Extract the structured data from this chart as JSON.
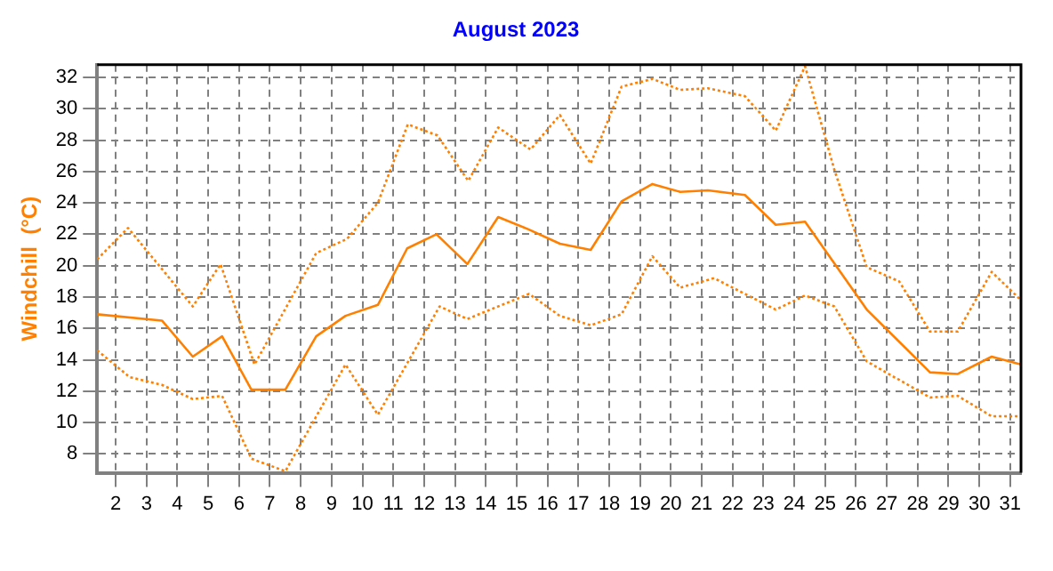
{
  "chart_data": {
    "type": "line",
    "title": "August 2023",
    "ylabel": "Windchill  (°C)",
    "xlim": [
      1.4,
      31.35
    ],
    "xticks": [
      2,
      3,
      4,
      5,
      6,
      7,
      8,
      9,
      10,
      11,
      12,
      13,
      14,
      15,
      16,
      17,
      18,
      19,
      20,
      21,
      22,
      23,
      24,
      25,
      26,
      27,
      28,
      29,
      30,
      31
    ],
    "ylim": [
      6.8,
      32.8
    ],
    "yticks": [
      8,
      10,
      12,
      14,
      16,
      18,
      20,
      22,
      24,
      26,
      28,
      30,
      32
    ],
    "grid": true,
    "legend": false,
    "marker": "none",
    "series": [
      {
        "color": "#ff8000",
        "line_style": "dotted",
        "x": [
          1.4,
          2.4,
          4.5,
          5.4,
          6.5,
          8.5,
          9.5,
          10.5,
          11.47,
          12.43,
          13.43,
          14.4,
          15.45,
          16.4,
          17.4,
          18.4,
          19.4,
          20.3,
          21.2,
          22.4,
          23.4,
          24.35,
          25.3,
          26.35,
          27.4,
          28.4,
          29.3,
          30.4,
          31.35
        ],
        "values": [
          20.4,
          22.4,
          17.4,
          20.1,
          13.7,
          20.8,
          21.7,
          24.0,
          29.0,
          28.3,
          25.4,
          28.8,
          27.4,
          29.6,
          26.5,
          31.4,
          31.9,
          31.2,
          31.3,
          30.8,
          28.6,
          32.7,
          26.1,
          19.9,
          19.0,
          15.8,
          15.8,
          19.6,
          17.8
        ]
      },
      {
        "color": "#ff8000",
        "line_style": "solid",
        "x": [
          1.4,
          3.5,
          4.5,
          5.45,
          6.4,
          7.5,
          8.5,
          9.45,
          10.5,
          11.45,
          12.4,
          13.4,
          14.4,
          15.4,
          16.4,
          17.4,
          18.4,
          19.4,
          20.3,
          21.2,
          22.4,
          23.4,
          24.35,
          26.35,
          28.4,
          29.3,
          30.4,
          31.35
        ],
        "values": [
          16.9,
          16.5,
          14.2,
          15.5,
          12.1,
          12.1,
          15.5,
          16.8,
          17.5,
          21.1,
          22.0,
          20.1,
          23.1,
          22.3,
          21.4,
          21.0,
          24.1,
          25.2,
          24.7,
          24.8,
          24.5,
          22.6,
          22.8,
          17.2,
          13.2,
          13.1,
          14.2,
          13.7
        ]
      },
      {
        "color": "#ff8000",
        "line_style": "dotted",
        "x": [
          1.4,
          2.45,
          3.5,
          4.5,
          5.45,
          6.4,
          7.5,
          9.45,
          10.5,
          12.5,
          13.4,
          15.4,
          16.4,
          17.4,
          18.4,
          19.4,
          20.3,
          21.4,
          23.4,
          24.35,
          25.3,
          26.35,
          28.4,
          29.3,
          30.4,
          31.35
        ],
        "values": [
          14.6,
          12.9,
          12.4,
          11.5,
          11.7,
          7.7,
          6.9,
          13.7,
          10.5,
          17.4,
          16.6,
          18.2,
          16.8,
          16.2,
          16.9,
          20.6,
          18.6,
          19.2,
          17.2,
          18.1,
          17.4,
          13.9,
          11.6,
          11.7,
          10.4,
          10.4
        ]
      }
    ]
  }
}
